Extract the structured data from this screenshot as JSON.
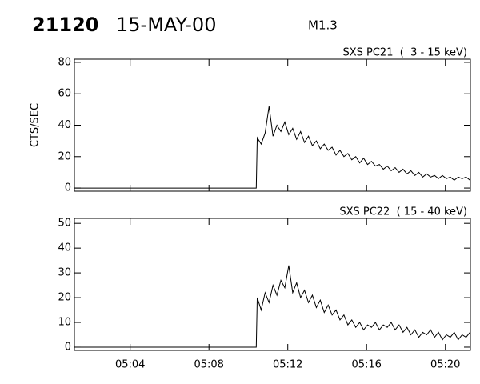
{
  "header": {
    "event": "21120",
    "date": "15-MAY-00",
    "class": "M1.3"
  },
  "chart_data": [
    {
      "type": "line",
      "title": "SXS PC21  (  3 - 15 keV)",
      "y_label": "CTS/SEC",
      "color": "#000000",
      "xlim": [
        1.17,
        21.27
      ],
      "xticks": [
        4,
        8,
        12,
        16,
        20
      ],
      "ylim": [
        -2,
        82
      ],
      "yticks": [
        0,
        20,
        40,
        60,
        80
      ],
      "x": [
        1.2,
        10.4,
        10.45,
        10.65,
        10.85,
        11.05,
        11.25,
        11.45,
        11.65,
        11.85,
        12.05,
        12.25,
        12.45,
        12.65,
        12.85,
        13.05,
        13.25,
        13.45,
        13.65,
        13.85,
        14.05,
        14.25,
        14.45,
        14.65,
        14.85,
        15.05,
        15.25,
        15.45,
        15.65,
        15.85,
        16.05,
        16.25,
        16.45,
        16.65,
        16.85,
        17.05,
        17.25,
        17.45,
        17.65,
        17.85,
        18.05,
        18.25,
        18.45,
        18.65,
        18.85,
        19.05,
        19.25,
        19.45,
        19.65,
        19.85,
        20.05,
        20.25,
        20.45,
        20.65,
        20.85,
        21.05,
        21.25
      ],
      "values": [
        0,
        0,
        32,
        28,
        35,
        52,
        33,
        40,
        36,
        42,
        34,
        38,
        31,
        36,
        29,
        33,
        27,
        30,
        25,
        28,
        24,
        26,
        21,
        24,
        20,
        22,
        18,
        20,
        16,
        19,
        15,
        17,
        14,
        15,
        12,
        14,
        11,
        13,
        10,
        12,
        9,
        11,
        8,
        10,
        7,
        9,
        7,
        8,
        6,
        8,
        6,
        7,
        5,
        7,
        6,
        7,
        5
      ]
    },
    {
      "type": "line",
      "title": "SXS PC22  ( 15 - 40 keV)",
      "color": "#000000",
      "xlim": [
        1.17,
        21.27
      ],
      "xticks": [
        {
          "value": 4,
          "label": "05:04"
        },
        {
          "value": 8,
          "label": "05:08"
        },
        {
          "value": 12,
          "label": "05:12"
        },
        {
          "value": 16,
          "label": "05:16"
        },
        {
          "value": 20,
          "label": "05:20"
        }
      ],
      "ylim": [
        -1.3,
        52
      ],
      "yticks": [
        0,
        10,
        20,
        30,
        40,
        50
      ],
      "x": [
        1.2,
        10.4,
        10.45,
        10.65,
        10.85,
        11.05,
        11.25,
        11.45,
        11.65,
        11.85,
        12.05,
        12.25,
        12.45,
        12.65,
        12.85,
        13.05,
        13.25,
        13.45,
        13.65,
        13.85,
        14.05,
        14.25,
        14.45,
        14.65,
        14.85,
        15.05,
        15.25,
        15.45,
        15.65,
        15.85,
        16.05,
        16.25,
        16.45,
        16.65,
        16.85,
        17.05,
        17.25,
        17.45,
        17.65,
        17.85,
        18.05,
        18.25,
        18.45,
        18.65,
        18.85,
        19.05,
        19.25,
        19.45,
        19.65,
        19.85,
        20.05,
        20.25,
        20.45,
        20.65,
        20.85,
        21.05,
        21.25
      ],
      "values": [
        0,
        0,
        20,
        15,
        22,
        18,
        25,
        21,
        27,
        24,
        33,
        22,
        26,
        20,
        23,
        18,
        21,
        16,
        19,
        14,
        17,
        13,
        15,
        11,
        13,
        9,
        11,
        8,
        10,
        7,
        9,
        8,
        10,
        7,
        9,
        8,
        10,
        7,
        9,
        6,
        8,
        5,
        7,
        4,
        6,
        5,
        7,
        4,
        6,
        3,
        5,
        4,
        6,
        3,
        5,
        4,
        6
      ]
    }
  ]
}
